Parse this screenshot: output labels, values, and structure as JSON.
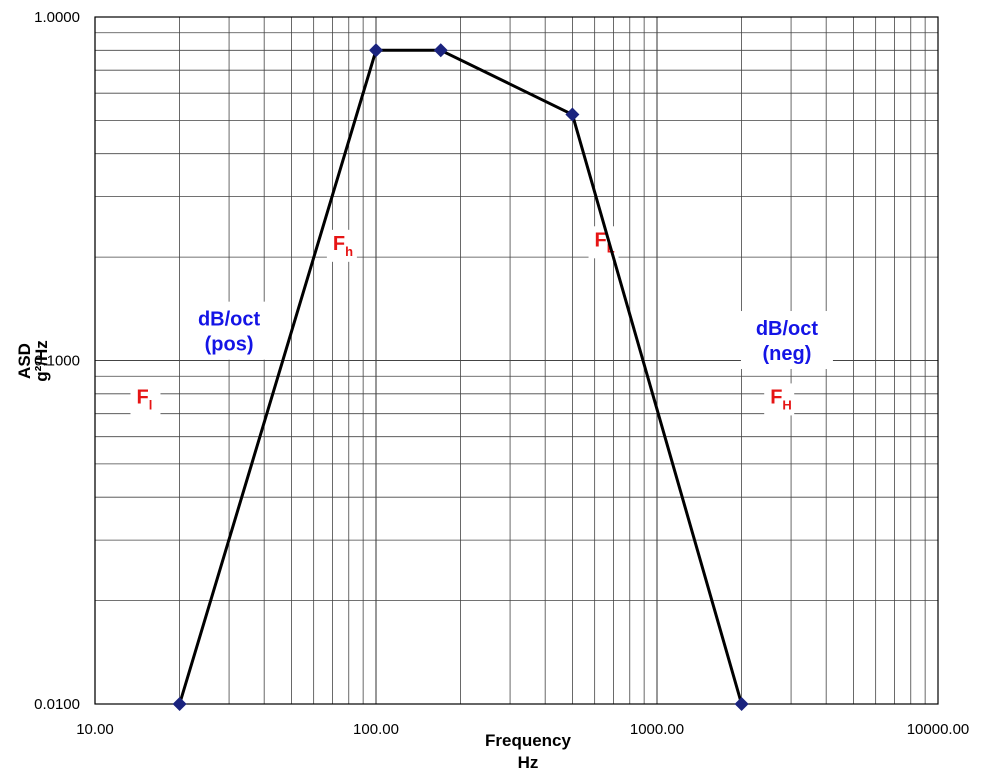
{
  "chart_data": {
    "type": "line",
    "scale": {
      "x": "log",
      "y": "log"
    },
    "xlim": [
      10,
      10000
    ],
    "ylim": [
      0.01,
      1.0
    ],
    "x_ticks": [
      "10.00",
      "100.00",
      "1000.00",
      "10000.00"
    ],
    "y_ticks": [
      "0.0100",
      "0.1000",
      "1.0000"
    ],
    "xlabel": [
      "Frequency",
      "Hz"
    ],
    "ylabel": [
      "ASD",
      "g²/Hz"
    ],
    "grid": true,
    "series": [
      {
        "x": [
          20,
          100,
          170,
          500,
          2000
        ],
        "y": [
          0.01,
          0.8,
          0.8,
          0.52,
          0.01
        ],
        "color": "#000000",
        "marker_color": "#1a237e",
        "marker": "diamond"
      }
    ],
    "annotations": [
      {
        "text": "F",
        "sub": "l",
        "color": "#e61414",
        "x": 15,
        "y": 0.075
      },
      {
        "text": "F",
        "sub": "h",
        "color": "#e61414",
        "x": 75,
        "y": 0.21
      },
      {
        "text": "F",
        "sub": "L",
        "color": "#e61414",
        "x": 640,
        "y": 0.215
      },
      {
        "text": "F",
        "sub": "H",
        "color": "#e61414",
        "x": 2700,
        "y": 0.075
      },
      {
        "lines": [
          "dB/oct",
          "(pos)"
        ],
        "color": "#1414e6",
        "x": 30,
        "y": 0.115
      },
      {
        "lines": [
          "dB/oct",
          "(neg)"
        ],
        "color": "#1414e6",
        "x": 2900,
        "y": 0.108
      }
    ]
  }
}
